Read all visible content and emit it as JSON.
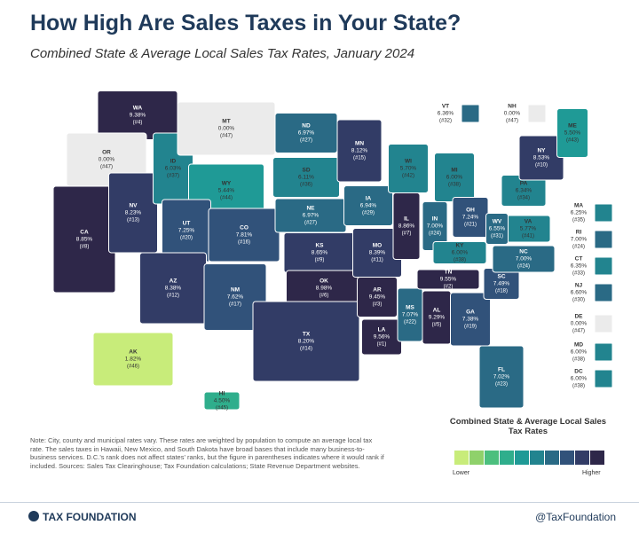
{
  "header": {
    "title": "How High Are Sales Taxes in Your State?",
    "subtitle": "Combined State & Average Local Sales Tax Rates, January 2024"
  },
  "states": [
    {
      "state": "WA",
      "rate": 9.38,
      "rate_label": "9.38%",
      "rank": "(#4)"
    },
    {
      "state": "OR",
      "rate": 0,
      "rate_label": "0.00%",
      "rank": "(#47)"
    },
    {
      "state": "CA",
      "rate": 8.85,
      "rate_label": "8.85%",
      "rank": "(#8)"
    },
    {
      "state": "NV",
      "rate": 8.23,
      "rate_label": "8.23%",
      "rank": "(#13)"
    },
    {
      "state": "ID",
      "rate": 6.03,
      "rate_label": "6.03%",
      "rank": "(#37)"
    },
    {
      "state": "MT",
      "rate": 0,
      "rate_label": "0.00%",
      "rank": "(#47)"
    },
    {
      "state": "WY",
      "rate": 5.44,
      "rate_label": "5.44%",
      "rank": "(#44)"
    },
    {
      "state": "UT",
      "rate": 7.25,
      "rate_label": "7.25%",
      "rank": "(#20)"
    },
    {
      "state": "AZ",
      "rate": 8.38,
      "rate_label": "8.38%",
      "rank": "(#12)"
    },
    {
      "state": "CO",
      "rate": 7.81,
      "rate_label": "7.81%",
      "rank": "(#16)"
    },
    {
      "state": "NM",
      "rate": 7.62,
      "rate_label": "7.62%",
      "rank": "(#17)"
    },
    {
      "state": "ND",
      "rate": 6.97,
      "rate_label": "6.97%",
      "rank": "(#27)"
    },
    {
      "state": "SD",
      "rate": 6.11,
      "rate_label": "6.11%",
      "rank": "(#36)"
    },
    {
      "state": "NE",
      "rate": 6.97,
      "rate_label": "6.97%",
      "rank": "(#27)"
    },
    {
      "state": "KS",
      "rate": 8.65,
      "rate_label": "8.65%",
      "rank": "(#9)"
    },
    {
      "state": "OK",
      "rate": 8.98,
      "rate_label": "8.98%",
      "rank": "(#6)"
    },
    {
      "state": "TX",
      "rate": 8.2,
      "rate_label": "8.20%",
      "rank": "(#14)"
    },
    {
      "state": "MN",
      "rate": 8.12,
      "rate_label": "8.12%",
      "rank": "(#15)"
    },
    {
      "state": "IA",
      "rate": 6.94,
      "rate_label": "6.94%",
      "rank": "(#29)"
    },
    {
      "state": "MO",
      "rate": 8.39,
      "rate_label": "8.39%",
      "rank": "(#11)"
    },
    {
      "state": "AR",
      "rate": 9.45,
      "rate_label": "9.45%",
      "rank": "(#3)"
    },
    {
      "state": "LA",
      "rate": 9.56,
      "rate_label": "9.56%",
      "rank": "(#1)"
    },
    {
      "state": "WI",
      "rate": 5.7,
      "rate_label": "5.70%",
      "rank": "(#42)"
    },
    {
      "state": "IL",
      "rate": 8.86,
      "rate_label": "8.86%",
      "rank": "(#7)"
    },
    {
      "state": "MS",
      "rate": 7.07,
      "rate_label": "7.07%",
      "rank": "(#22)"
    },
    {
      "state": "MI",
      "rate": 6,
      "rate_label": "6.00%",
      "rank": "(#38)"
    },
    {
      "state": "IN",
      "rate": 7,
      "rate_label": "7.00%",
      "rank": "(#24)"
    },
    {
      "state": "KY",
      "rate": 6,
      "rate_label": "6.00%",
      "rank": "(#38)"
    },
    {
      "state": "TN",
      "rate": 9.55,
      "rate_label": "9.55%",
      "rank": "(#2)"
    },
    {
      "state": "AL",
      "rate": 9.29,
      "rate_label": "9.29%",
      "rank": "(#5)"
    },
    {
      "state": "OH",
      "rate": 7.24,
      "rate_label": "7.24%",
      "rank": "(#21)"
    },
    {
      "state": "GA",
      "rate": 7.38,
      "rate_label": "7.38%",
      "rank": "(#19)"
    },
    {
      "state": "FL",
      "rate": 7.02,
      "rate_label": "7.02%",
      "rank": "(#23)"
    },
    {
      "state": "SC",
      "rate": 7.49,
      "rate_label": "7.49%",
      "rank": "(#18)"
    },
    {
      "state": "NC",
      "rate": 7,
      "rate_label": "7.00%",
      "rank": "(#24)"
    },
    {
      "state": "VA",
      "rate": 5.77,
      "rate_label": "5.77%",
      "rank": "(#41)"
    },
    {
      "state": "WV",
      "rate": 6.55,
      "rate_label": "6.55%",
      "rank": "(#31)"
    },
    {
      "state": "PA",
      "rate": 6.34,
      "rate_label": "6.34%",
      "rank": "(#34)"
    },
    {
      "state": "NY",
      "rate": 8.53,
      "rate_label": "8.53%",
      "rank": "(#10)"
    },
    {
      "state": "VT",
      "rate": 6.36,
      "rate_label": "6.36%",
      "rank": "(#32)"
    },
    {
      "state": "NH",
      "rate": 0,
      "rate_label": "0.00%",
      "rank": "(#47)"
    },
    {
      "state": "ME",
      "rate": 5.5,
      "rate_label": "5.50%",
      "rank": "(#43)"
    },
    {
      "state": "MA",
      "rate": 6.25,
      "rate_label": "6.25%",
      "rank": "(#35)"
    },
    {
      "state": "RI",
      "rate": 7,
      "rate_label": "7.00%",
      "rank": "(#24)"
    },
    {
      "state": "CT",
      "rate": 6.35,
      "rate_label": "6.35%",
      "rank": "(#33)"
    },
    {
      "state": "NJ",
      "rate": 6.6,
      "rate_label": "6.60%",
      "rank": "(#30)"
    },
    {
      "state": "DE",
      "rate": 0,
      "rate_label": "0.00%",
      "rank": "(#47)"
    },
    {
      "state": "MD",
      "rate": 6,
      "rate_label": "6.00%",
      "rank": "(#38)"
    },
    {
      "state": "DC",
      "rate": 6,
      "rate_label": "6.00%",
      "rank": "(#38)"
    },
    {
      "state": "AK",
      "rate": 1.82,
      "rate_label": "1.82%",
      "rank": "(#46)"
    },
    {
      "state": "HI",
      "rate": 4.5,
      "rate_label": "4.50%",
      "rank": "(#45)"
    }
  ],
  "legend": {
    "title": "Combined State & Average Local Sales Tax Rates",
    "low": "Lower",
    "high": "Higher",
    "colors": [
      "#c8ec7a",
      "#8fd16b",
      "#4cbf7e",
      "#2fae8c",
      "#1f9a96",
      "#22848f",
      "#2a6a85",
      "#31527a",
      "#323c66",
      "#2e2749"
    ],
    "zero_color": "#ebebeb"
  },
  "notes": "Note: City, county and municipal rates vary. These rates are weighted by population to compute an average local tax rate. The sales taxes in Hawaii, New Mexico, and South Dakota have broad bases that include many business-to-business services. D.C.'s rank does not affect states' ranks, but the figure in parentheses indicates where it would rank if included. Sources: Sales Tax Clearinghouse; Tax Foundation calculations; State Revenue Department websites.",
  "footer": {
    "brand": "TAX FOUNDATION",
    "handle": "@TaxFoundation"
  }
}
